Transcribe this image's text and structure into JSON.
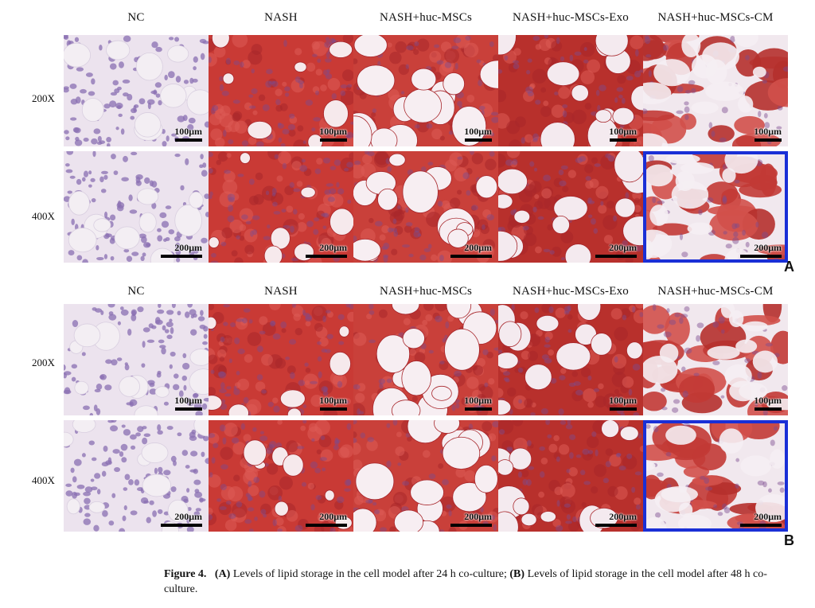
{
  "columns": [
    "NC",
    "NASH",
    "NASH+huc-MSCs",
    "NASH+huc-MSCs-Exo",
    "NASH+huc-MSCs-CM"
  ],
  "rows": [
    "200X",
    "400X"
  ],
  "scale_bars": {
    "200X": "100μm",
    "400X": "200μm"
  },
  "panels": [
    {
      "letter": "A",
      "highlighted_cell": "400X / NASH+huc-MSCs-CM"
    },
    {
      "letter": "B",
      "highlighted_cell": "400X / NASH+huc-MSCs-CM"
    }
  ],
  "stain_description": "Oil Red O: purple nuclei, red lipid droplets, white vacuoles",
  "colors": {
    "highlight_border": "#1a2fd6",
    "lipid_red": "#c8342f",
    "nucleus_purple": "#8a72b4",
    "background_pink": "#efe3ea"
  },
  "caption": {
    "label": "Figure 4.",
    "a_marker": "(A)",
    "a_text": " Levels of lipid storage in the cell model after 24 h co-culture; ",
    "b_marker": "(B)",
    "b_text": " Levels of lipid storage in the cell model after 48 h co-culture."
  }
}
